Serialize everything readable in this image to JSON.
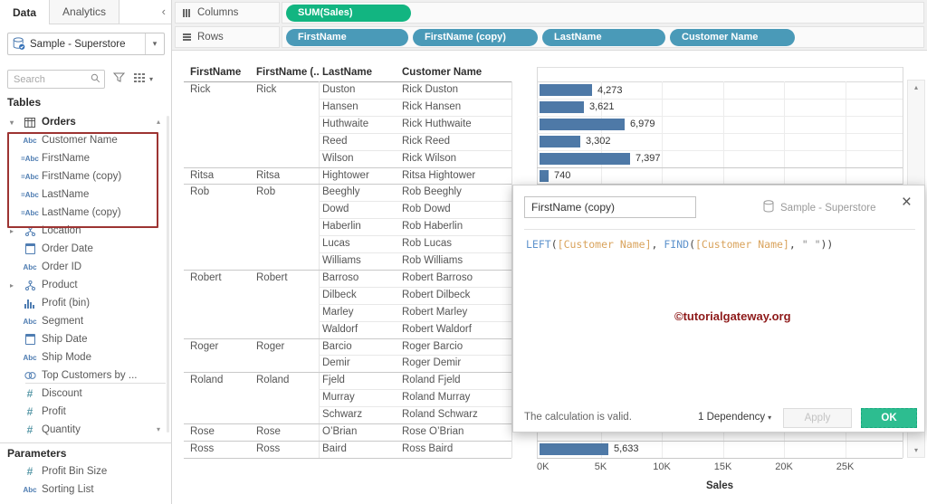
{
  "icons": {
    "collapse": "‹",
    "caret": "▾",
    "chevron_right": "▸",
    "chevron_down": "▾",
    "scroll_up": "▴",
    "scroll_down": "▾",
    "close": "×"
  },
  "colors": {
    "measure_pill": "#12b581",
    "dimension_pill": "#4a9ab8",
    "bar": "#4e79a7",
    "ok_button": "#2dbd90",
    "highlight_box": "#9d3432",
    "watermark": "#8e1a1a"
  },
  "sidebar": {
    "tabs": [
      {
        "label": "Data"
      },
      {
        "label": "Analytics"
      }
    ],
    "datasource": "Sample - Superstore",
    "search_placeholder": "Search",
    "tables_label": "Tables",
    "orders_group": "Orders",
    "fields": [
      {
        "icon": "abc",
        "label": "Customer Name",
        "boxed": true
      },
      {
        "icon": "calc-abc",
        "label": "FirstName",
        "boxed": true
      },
      {
        "icon": "calc-abc",
        "label": "FirstName (copy)",
        "boxed": true
      },
      {
        "icon": "calc-abc",
        "label": "LastName",
        "boxed": true
      },
      {
        "icon": "calc-abc",
        "label": "LastName (copy)",
        "boxed": true
      },
      {
        "icon": "hierarchy",
        "label": "Location",
        "chevron": true
      },
      {
        "icon": "calendar",
        "label": "Order Date"
      },
      {
        "icon": "abc",
        "label": "Order ID"
      },
      {
        "icon": "hierarchy",
        "label": "Product",
        "chevron": true
      },
      {
        "icon": "histogram",
        "label": "Profit (bin)"
      },
      {
        "icon": "abc",
        "label": "Segment"
      },
      {
        "icon": "calendar",
        "label": "Ship Date"
      },
      {
        "icon": "abc",
        "label": "Ship Mode"
      },
      {
        "icon": "set",
        "label": "Top Customers by ..."
      },
      {
        "icon": "num",
        "label": "Discount"
      },
      {
        "icon": "num",
        "label": "Profit"
      },
      {
        "icon": "num",
        "label": "Quantity"
      }
    ],
    "parameters_label": "Parameters",
    "parameters": [
      {
        "icon": "num",
        "label": "Profit Bin Size"
      },
      {
        "icon": "abc",
        "label": "Sorting List"
      }
    ]
  },
  "shelves": {
    "columns_label": "Columns",
    "rows_label": "Rows",
    "columns_pills": [
      {
        "label": "SUM(Sales)",
        "type": "measure"
      }
    ],
    "rows_pills": [
      {
        "label": "FirstName",
        "type": "dimension"
      },
      {
        "label": "FirstName (copy)",
        "type": "dimension"
      },
      {
        "label": "LastName",
        "type": "dimension"
      },
      {
        "label": "Customer Name",
        "type": "dimension"
      }
    ]
  },
  "table": {
    "headers": [
      "FirstName",
      "FirstName (..",
      "LastName",
      "Customer Name"
    ],
    "groups": [
      {
        "first": "Rick",
        "copy": "Rick",
        "rows": [
          {
            "last": "Duston",
            "full": "Rick Duston",
            "value": 4273,
            "label": "4,273"
          },
          {
            "last": "Hansen",
            "full": "Rick Hansen",
            "value": 3621,
            "label": "3,621"
          },
          {
            "last": "Huthwaite",
            "full": "Rick Huthwaite",
            "value": 6979,
            "label": "6,979"
          },
          {
            "last": "Reed",
            "full": "Rick Reed",
            "value": 3302,
            "label": "3,302"
          },
          {
            "last": "Wilson",
            "full": "Rick Wilson",
            "value": 7397,
            "label": "7,397"
          }
        ]
      },
      {
        "first": "Ritsa",
        "copy": "Ritsa",
        "rows": [
          {
            "last": "Hightower",
            "full": "Ritsa Hightower",
            "value": 740,
            "label": "740"
          }
        ]
      },
      {
        "first": "Rob",
        "copy": "Rob",
        "rows": [
          {
            "last": "Beeghly",
            "full": "Rob Beeghly",
            "value": null,
            "label": ""
          },
          {
            "last": "Dowd",
            "full": "Rob Dowd",
            "value": null,
            "label": ""
          },
          {
            "last": "Haberlin",
            "full": "Rob Haberlin",
            "value": null,
            "label": ""
          },
          {
            "last": "Lucas",
            "full": "Rob Lucas",
            "value": null,
            "label": ""
          },
          {
            "last": "Williams",
            "full": "Rob Williams",
            "value": null,
            "label": ""
          }
        ]
      },
      {
        "first": "Robert",
        "copy": "Robert",
        "rows": [
          {
            "last": "Barroso",
            "full": "Robert Barroso",
            "value": null,
            "label": ""
          },
          {
            "last": "Dilbeck",
            "full": "Robert Dilbeck",
            "value": null,
            "label": ""
          },
          {
            "last": "Marley",
            "full": "Robert Marley",
            "value": null,
            "label": ""
          },
          {
            "last": "Waldorf",
            "full": "Robert Waldorf",
            "value": null,
            "label": ""
          }
        ]
      },
      {
        "first": "Roger",
        "copy": "Roger",
        "rows": [
          {
            "last": "Barcio",
            "full": "Roger Barcio",
            "value": null,
            "label": ""
          },
          {
            "last": "Demir",
            "full": "Roger Demir",
            "value": null,
            "label": ""
          }
        ]
      },
      {
        "first": "Roland",
        "copy": "Roland",
        "rows": [
          {
            "last": "Fjeld",
            "full": "Roland Fjeld",
            "value": null,
            "label": ""
          },
          {
            "last": "Murray",
            "full": "Roland Murray",
            "value": null,
            "label": ""
          },
          {
            "last": "Schwarz",
            "full": "Roland Schwarz",
            "value": null,
            "label": ""
          }
        ]
      },
      {
        "first": "Rose",
        "copy": "Rose",
        "rows": [
          {
            "last": "O’Brian",
            "full": "Rose O’Brian",
            "value": null,
            "label": ""
          }
        ]
      },
      {
        "first": "Ross",
        "copy": "Ross",
        "rows": [
          {
            "last": "Baird",
            "full": "Ross Baird",
            "value": 5633,
            "label": "5,633"
          }
        ]
      }
    ]
  },
  "axis": {
    "ticks": [
      "0K",
      "5K",
      "10K",
      "15K",
      "20K",
      "25K"
    ],
    "label": "Sales"
  },
  "chart_data": {
    "type": "bar",
    "orientation": "horizontal",
    "categories": [
      "Rick Duston",
      "Rick Hansen",
      "Rick Huthwaite",
      "Rick Reed",
      "Rick Wilson",
      "Ritsa Hightower",
      "Rob Beeghly",
      "Rob Dowd",
      "Rob Haberlin",
      "Rob Lucas",
      "Rob Williams",
      "Robert Barroso",
      "Robert Dilbeck",
      "Robert Marley",
      "Robert Waldorf",
      "Roger Barcio",
      "Roger Demir",
      "Roland Fjeld",
      "Roland Murray",
      "Roland Schwarz",
      "Rose O’Brian",
      "Ross Baird"
    ],
    "values": [
      4273,
      3621,
      6979,
      3302,
      7397,
      740,
      null,
      null,
      null,
      null,
      null,
      null,
      null,
      null,
      null,
      null,
      null,
      null,
      null,
      null,
      null,
      5633
    ],
    "value_labels": [
      "4,273",
      "3,621",
      "6,979",
      "3,302",
      "7,397",
      "740",
      "",
      "",
      "",
      "",
      "",
      "",
      "",
      "",
      "",
      "",
      "",
      "",
      "",
      "",
      "",
      "5,633"
    ],
    "title": "",
    "xlabel": "Sales",
    "ylabel": "Customer Name",
    "x_ticks": [
      "0K",
      "5K",
      "10K",
      "15K",
      "20K",
      "25K"
    ],
    "xlim": [
      0,
      29700
    ],
    "grid": true,
    "bar_color": "#4e79a7",
    "note": "bars for rows behind the calculation dialog are not visible in the screenshot"
  },
  "dialog": {
    "field_name": "FirstName (copy)",
    "datasource": "Sample - Superstore",
    "formula_tokens": [
      {
        "t": "LEFT",
        "c": "fn"
      },
      {
        "t": "(",
        "c": "p"
      },
      {
        "t": "[Customer Name]",
        "c": "field"
      },
      {
        "t": ", ",
        "c": "p"
      },
      {
        "t": "FIND",
        "c": "fn"
      },
      {
        "t": "(",
        "c": "p"
      },
      {
        "t": "[Customer Name]",
        "c": "field"
      },
      {
        "t": ", ",
        "c": "p"
      },
      {
        "t": "\" \"",
        "c": "str"
      },
      {
        "t": "))",
        "c": "p"
      }
    ],
    "status": "The calculation is valid.",
    "dependency": "1 Dependency",
    "apply_label": "Apply",
    "ok_label": "OK",
    "watermark": "©tutorialgateway.org"
  }
}
